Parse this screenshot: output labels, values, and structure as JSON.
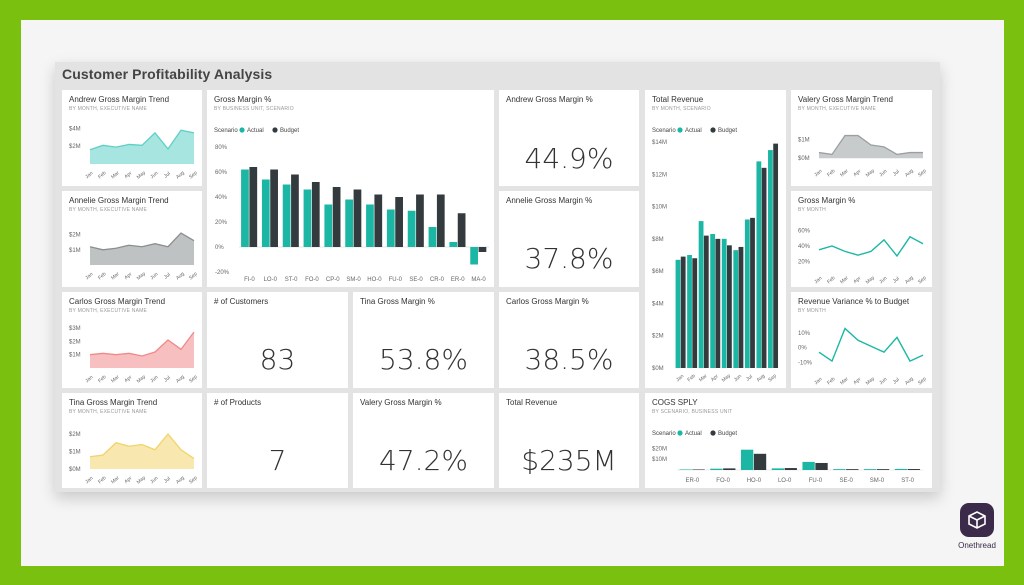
{
  "dashboard": {
    "title": "Customer Profitability Analysis"
  },
  "colors": {
    "actual": "#1cb7a4",
    "budget": "#333b3e",
    "andrew": "#5fd0c6",
    "annelie": "#8a8f90",
    "carlos": "#f08a8a",
    "tina": "#f2d36b",
    "valery": "#9aa0a0"
  },
  "months": [
    "Jan",
    "Feb",
    "Mar",
    "Apr",
    "May",
    "Jun",
    "Jul",
    "Aug",
    "Sep"
  ],
  "tiles": {
    "andrew_trend": {
      "title": "Andrew Gross Margin Trend",
      "subtitle": "BY MONTH, EXECUTIVE NAME",
      "ticks": [
        "$4M",
        "$2M"
      ]
    },
    "annelie_trend": {
      "title": "Annelie Gross Margin Trend",
      "subtitle": "BY MONTH, EXECUTIVE NAME",
      "ticks": [
        "$2M",
        "$1M"
      ]
    },
    "carlos_trend": {
      "title": "Carlos Gross Margin Trend",
      "subtitle": "BY MONTH, EXECUTIVE NAME",
      "ticks": [
        "$3M",
        "$2M",
        "$1M"
      ]
    },
    "tina_trend": {
      "title": "Tina Gross Margin Trend",
      "subtitle": "BY MONTH, EXECUTIVE NAME",
      "ticks": [
        "$2M",
        "$1M",
        "$0M"
      ]
    },
    "gm_bu": {
      "title": "Gross Margin %",
      "subtitle": "BY BUSINESS UNIT, SCENARIO",
      "legend_label": "Scenario",
      "legend_actual": "Actual",
      "legend_budget": "Budget",
      "ticks": [
        "80%",
        "60%",
        "40%",
        "20%",
        "0%",
        "-20%"
      ]
    },
    "andrew_gm": {
      "title": "Andrew Gross Margin %",
      "value": "44.9%"
    },
    "annelie_gm": {
      "title": "Annelie Gross Margin %",
      "value": "37.8%"
    },
    "customers": {
      "title": "# of Customers",
      "value": "83"
    },
    "tina_gm": {
      "title": "Tina Gross Margin %",
      "value": "53.8%"
    },
    "carlos_gm": {
      "title": "Carlos Gross Margin %",
      "value": "38.5%"
    },
    "products": {
      "title": "# of Products",
      "value": "7"
    },
    "valery_gm": {
      "title": "Valery Gross Margin %",
      "value": "47.2%"
    },
    "total_revenue_card": {
      "title": "Total Revenue",
      "value": "$235M"
    },
    "total_revenue": {
      "title": "Total Revenue",
      "subtitle": "BY MONTH, SCENARIO",
      "legend_label": "Scenario",
      "legend_actual": "Actual",
      "legend_budget": "Budget",
      "ticks": [
        "$14M",
        "$12M",
        "$10M",
        "$8M",
        "$6M",
        "$4M",
        "$2M",
        "$0M"
      ]
    },
    "valery_trend": {
      "title": "Valery Gross Margin Trend",
      "subtitle": "BY MONTH, EXECUTIVE NAME",
      "ticks": [
        "$1M",
        "$0M"
      ]
    },
    "gm_month": {
      "title": "Gross Margin %",
      "subtitle": "BY MONTH",
      "ticks": [
        "60%",
        "40%",
        "20%"
      ]
    },
    "rev_variance": {
      "title": "Revenue Variance % to Budget",
      "subtitle": "BY MONTH",
      "ticks": [
        "10%",
        "0%",
        "-10%"
      ]
    },
    "cogs": {
      "title": "COGS SPLY",
      "subtitle": "BY SCENARIO, BUSINESS UNIT",
      "legend_label": "Scenario",
      "legend_actual": "Actual",
      "legend_budget": "Budget",
      "ticks": [
        "$20M",
        "$10M"
      ]
    }
  },
  "brand": {
    "name": "Onethread"
  },
  "chart_data": [
    {
      "id": "andrew_trend",
      "type": "area",
      "title": "Andrew Gross Margin Trend",
      "x": [
        "Jan",
        "Feb",
        "Mar",
        "Apr",
        "May",
        "Jun",
        "Jul",
        "Aug",
        "Sep"
      ],
      "values": [
        1.6,
        2.1,
        1.9,
        2.2,
        2.1,
        3.5,
        1.7,
        3.8,
        3.5
      ],
      "ylim": [
        0,
        4.5
      ]
    },
    {
      "id": "annelie_trend",
      "type": "area",
      "title": "Annelie Gross Margin Trend",
      "x": [
        "Jan",
        "Feb",
        "Mar",
        "Apr",
        "May",
        "Jun",
        "Jul",
        "Aug",
        "Sep"
      ],
      "values": [
        1.2,
        1.0,
        1.1,
        1.3,
        1.2,
        1.4,
        1.2,
        2.1,
        1.6
      ],
      "ylim": [
        0,
        2.5
      ]
    },
    {
      "id": "carlos_trend",
      "type": "area",
      "title": "Carlos Gross Margin Trend",
      "x": [
        "Jan",
        "Feb",
        "Mar",
        "Apr",
        "May",
        "Jun",
        "Jul",
        "Aug",
        "Sep"
      ],
      "values": [
        1.0,
        1.1,
        1.0,
        1.1,
        0.9,
        1.2,
        2.1,
        1.4,
        2.7
      ],
      "ylim": [
        0,
        3.3
      ]
    },
    {
      "id": "tina_trend",
      "type": "area",
      "title": "Tina Gross Margin Trend",
      "x": [
        "Jan",
        "Feb",
        "Mar",
        "Apr",
        "May",
        "Jun",
        "Jul",
        "Aug",
        "Sep"
      ],
      "values": [
        0.7,
        0.8,
        1.5,
        1.3,
        1.4,
        1.1,
        2.0,
        1.1,
        0.6
      ],
      "ylim": [
        0,
        2.4
      ]
    },
    {
      "id": "valery_trend",
      "type": "area",
      "title": "Valery Gross Margin Trend",
      "x": [
        "Jan",
        "Feb",
        "Mar",
        "Apr",
        "May",
        "Jun",
        "Jul",
        "Aug",
        "Sep"
      ],
      "values": [
        0.3,
        0.2,
        1.2,
        1.2,
        0.7,
        0.6,
        0.2,
        0.3,
        0.3
      ],
      "ylim": [
        -0.2,
        1.6
      ]
    },
    {
      "id": "gm_bu",
      "type": "bar",
      "title": "Gross Margin %",
      "categories": [
        "FI-0",
        "LO-0",
        "ST-0",
        "FO-0",
        "CP-0",
        "SM-0",
        "HO-0",
        "FU-0",
        "SE-0",
        "CR-0",
        "ER-0",
        "MA-0"
      ],
      "series": [
        {
          "name": "Actual",
          "values": [
            62,
            54,
            50,
            46,
            34,
            38,
            34,
            30,
            29,
            16,
            4,
            -14
          ]
        },
        {
          "name": "Budget",
          "values": [
            64,
            62,
            58,
            52,
            48,
            46,
            42,
            40,
            42,
            42,
            27,
            -4
          ]
        }
      ],
      "ylim": [
        -20,
        80
      ]
    },
    {
      "id": "total_revenue",
      "type": "bar",
      "title": "Total Revenue",
      "categories": [
        "Jan",
        "Feb",
        "Mar",
        "Apr",
        "May",
        "Jun",
        "Jul",
        "Aug",
        "Sep"
      ],
      "series": [
        {
          "name": "Actual",
          "values": [
            6.7,
            7.0,
            9.1,
            8.3,
            8.0,
            7.3,
            9.2,
            12.8,
            13.5
          ]
        },
        {
          "name": "Budget",
          "values": [
            6.9,
            6.8,
            8.2,
            8.0,
            7.6,
            7.5,
            9.3,
            12.4,
            13.9
          ]
        }
      ],
      "ylim": [
        0,
        14
      ]
    },
    {
      "id": "gm_month",
      "type": "line",
      "title": "Gross Margin %",
      "x": [
        "Jan",
        "Feb",
        "Mar",
        "Apr",
        "May",
        "Jun",
        "Jul",
        "Aug",
        "Sep"
      ],
      "values": [
        35,
        40,
        33,
        28,
        33,
        48,
        27,
        52,
        43
      ],
      "ylim": [
        10,
        70
      ]
    },
    {
      "id": "rev_variance",
      "type": "line",
      "title": "Revenue Variance % to Budget",
      "x": [
        "Jan",
        "Feb",
        "Mar",
        "Apr",
        "May",
        "Jun",
        "Jul",
        "Aug",
        "Sep"
      ],
      "values": [
        -3,
        -9,
        13,
        5,
        1,
        -3,
        7,
        -9,
        -5
      ],
      "ylim": [
        -15,
        16
      ]
    },
    {
      "id": "cogs",
      "type": "bar",
      "title": "COGS SPLY",
      "categories": [
        "ER-0",
        "FO-0",
        "HO-0",
        "LO-0",
        "FU-0",
        "SE-0",
        "SM-0",
        "ST-0"
      ],
      "series": [
        {
          "name": "Actual",
          "values": [
            0.5,
            1.2,
            18.8,
            1.5,
            7.5,
            0.8,
            0.8,
            1.0
          ]
        },
        {
          "name": "Budget",
          "values": [
            0.5,
            1.5,
            15.0,
            1.8,
            6.5,
            0.8,
            0.8,
            0.9
          ]
        }
      ],
      "ylim": [
        0,
        25
      ]
    }
  ]
}
